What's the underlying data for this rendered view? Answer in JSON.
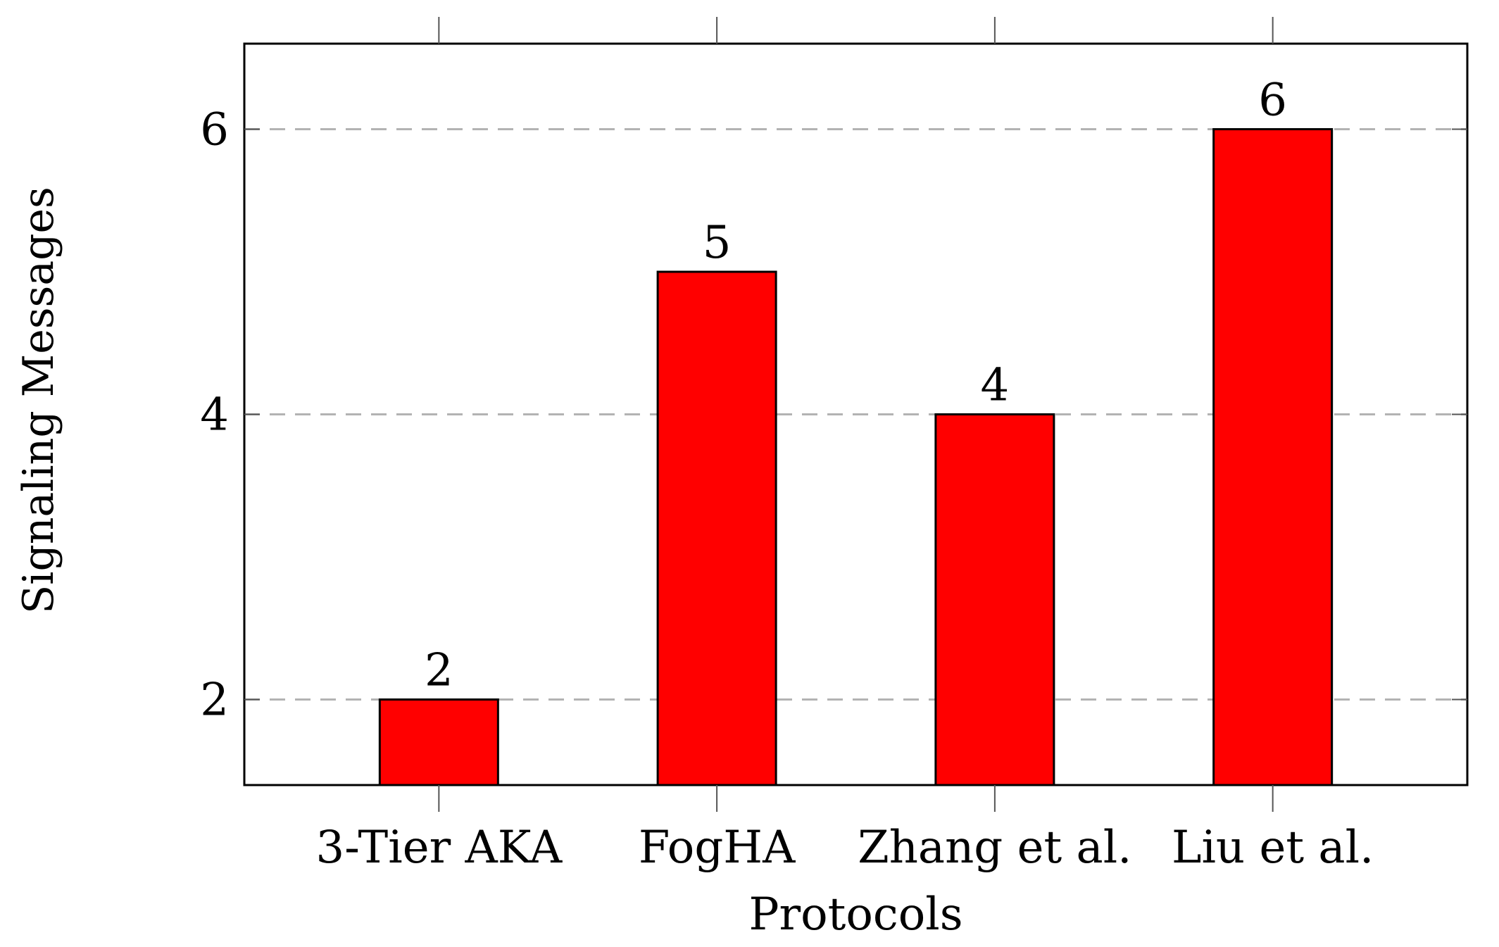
{
  "chart_data": {
    "type": "bar",
    "title": "",
    "xlabel": "Protocols",
    "ylabel": "Signaling Messages",
    "categories": [
      "3-Tier AKA",
      "FogHA",
      "Zhang et al.",
      "Liu et al."
    ],
    "series": [
      {
        "values": [
          2,
          5,
          4,
          6
        ],
        "color": "#ff0000"
      }
    ],
    "data_labels": [
      "2",
      "5",
      "4",
      "6"
    ],
    "yticks": [
      2,
      4,
      6
    ],
    "ytick_labels": [
      "2",
      "4",
      "6"
    ],
    "ylim": [
      1.4,
      6.6
    ],
    "grid": "horizontal dashed",
    "colors": {
      "bar_fill": "#ff0000",
      "bar_stroke": "#000000",
      "grid": "#b3b3b3",
      "axis": "#000000"
    }
  }
}
